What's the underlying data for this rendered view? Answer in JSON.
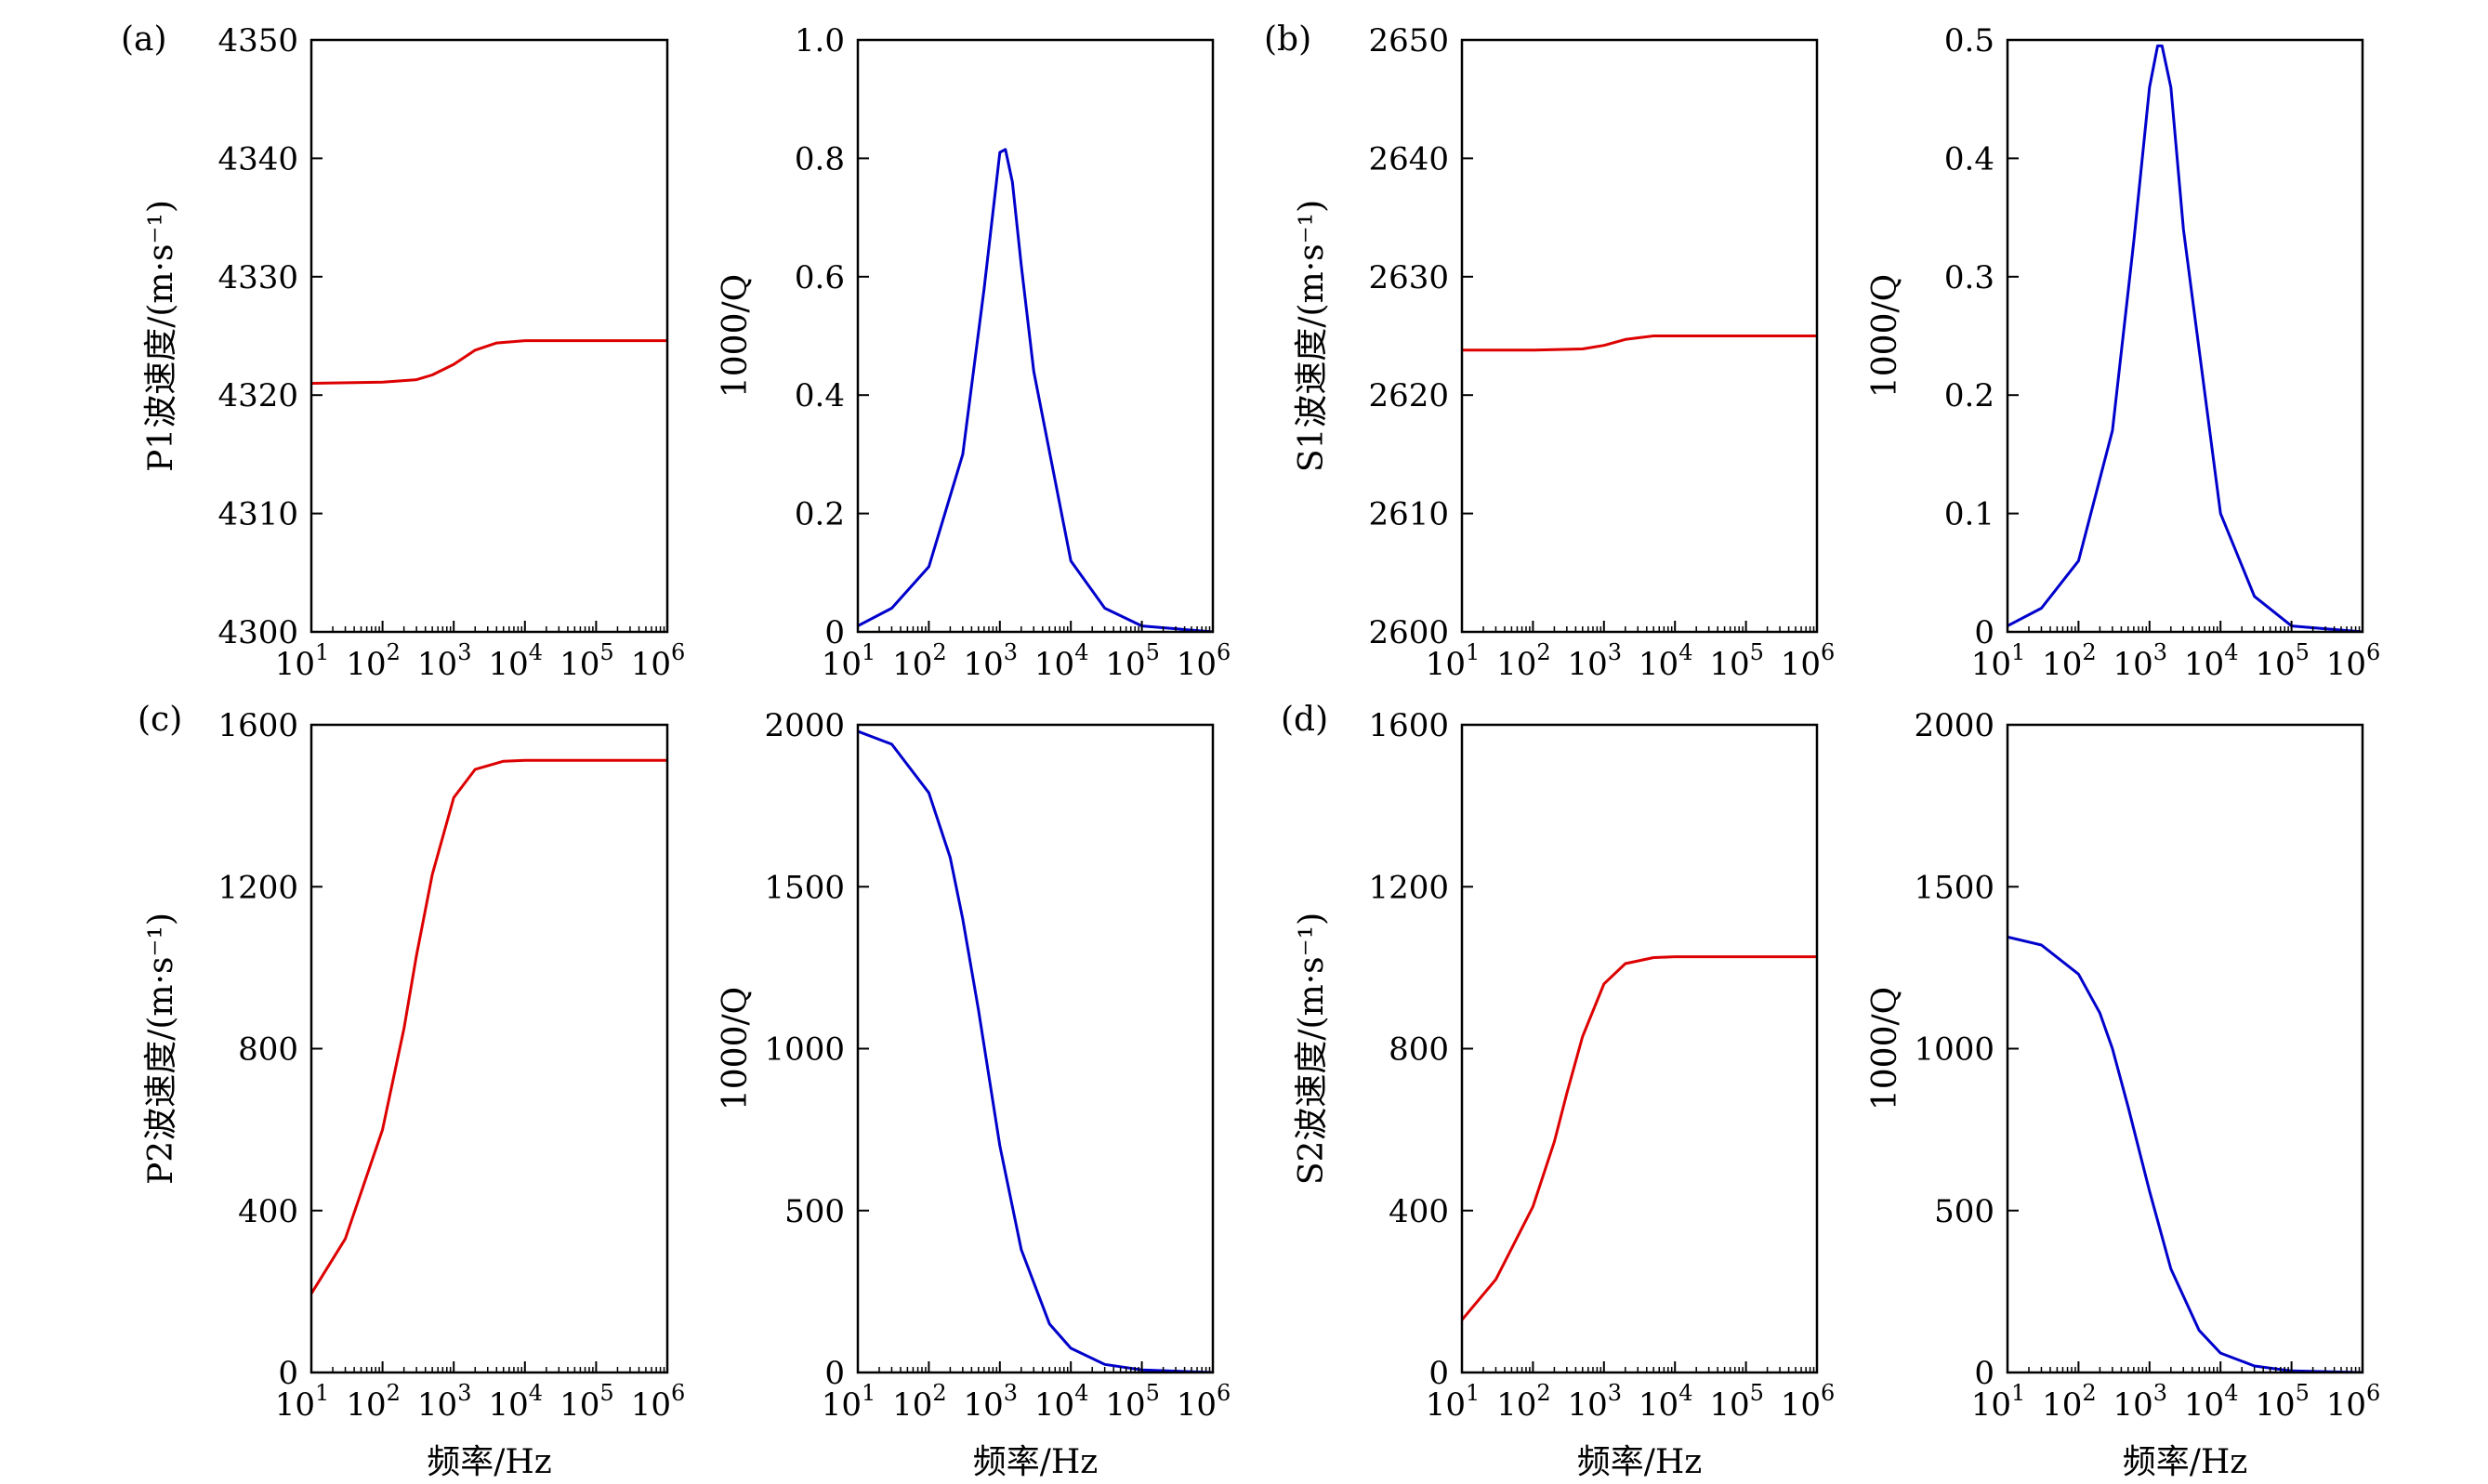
{
  "figure": {
    "panel_labels": [
      "(a)",
      "(b)",
      "(c)",
      "(d)"
    ],
    "xlabel": "频率/Hz"
  },
  "colors": {
    "velocity": "#dd0000",
    "attenuation": "#0000cc",
    "axis": "#000000"
  },
  "chart_data": [
    {
      "type": "line",
      "panel": "(a)",
      "xscale": "log",
      "xlim": [
        10,
        1000000
      ],
      "xticks": {
        "base": "10",
        "exponents": [
          "1",
          "2",
          "3",
          "4",
          "5",
          "6"
        ]
      },
      "xlabel": "",
      "ylabel": "P1波速度/(m·s⁻¹)",
      "ylim": [
        4300,
        4350
      ],
      "yticks": [
        "4300",
        "4310",
        "4320",
        "4330",
        "4340",
        "4350"
      ],
      "series": [
        {
          "name": "P1 velocity",
          "color": "#dd0000",
          "x": [
            10,
            100,
            300,
            500,
            1000,
            2000,
            4000,
            10000,
            100000,
            1000000
          ],
          "y": [
            4321.0,
            4321.1,
            4321.3,
            4321.7,
            4322.6,
            4323.8,
            4324.4,
            4324.6,
            4324.6,
            4324.6
          ]
        }
      ]
    },
    {
      "type": "line",
      "panel": "(a)",
      "xscale": "log",
      "xlim": [
        10,
        1000000
      ],
      "xticks": {
        "base": "10",
        "exponents": [
          "1",
          "2",
          "3",
          "4",
          "5",
          "6"
        ]
      },
      "xlabel": "",
      "ylabel": "1000/Q",
      "ylim": [
        0,
        1.0
      ],
      "yticks": [
        "0",
        "0.2",
        "0.4",
        "0.6",
        "0.8",
        "1.0"
      ],
      "series": [
        {
          "name": "P1 attenuation",
          "color": "#0000cc",
          "x": [
            10,
            30,
            100,
            300,
            600,
            1000,
            1200,
            1500,
            2000,
            3000,
            10000,
            30000,
            100000,
            1000000
          ],
          "y": [
            0.01,
            0.04,
            0.11,
            0.3,
            0.58,
            0.81,
            0.815,
            0.76,
            0.62,
            0.44,
            0.12,
            0.04,
            0.01,
            0.0
          ]
        }
      ]
    },
    {
      "type": "line",
      "panel": "(b)",
      "xscale": "log",
      "xlim": [
        10,
        1000000
      ],
      "xticks": {
        "base": "10",
        "exponents": [
          "1",
          "2",
          "3",
          "4",
          "5",
          "6"
        ]
      },
      "xlabel": "",
      "ylabel": "S1波速度/(m·s⁻¹)",
      "ylim": [
        2600,
        2650
      ],
      "yticks": [
        "2600",
        "2610",
        "2620",
        "2630",
        "2640",
        "2650"
      ],
      "series": [
        {
          "name": "S1 velocity",
          "color": "#dd0000",
          "x": [
            10,
            100,
            500,
            1000,
            2000,
            5000,
            10000,
            100000,
            1000000
          ],
          "y": [
            2623.8,
            2623.8,
            2623.9,
            2624.2,
            2624.7,
            2625.0,
            2625.0,
            2625.0,
            2625.0
          ]
        }
      ]
    },
    {
      "type": "line",
      "panel": "(b)",
      "xscale": "log",
      "xlim": [
        10,
        1000000
      ],
      "xticks": {
        "base": "10",
        "exponents": [
          "1",
          "2",
          "3",
          "4",
          "5",
          "6"
        ]
      },
      "xlabel": "",
      "ylabel": "1000/Q",
      "ylim": [
        0,
        0.5
      ],
      "yticks": [
        "0",
        "0.1",
        "0.2",
        "0.3",
        "0.4",
        "0.5"
      ],
      "series": [
        {
          "name": "S1 attenuation",
          "color": "#0000cc",
          "x": [
            10,
            30,
            100,
            300,
            600,
            1000,
            1300,
            1500,
            2000,
            3000,
            10000,
            30000,
            100000,
            1000000
          ],
          "y": [
            0.005,
            0.02,
            0.06,
            0.17,
            0.33,
            0.46,
            0.495,
            0.495,
            0.46,
            0.34,
            0.1,
            0.03,
            0.005,
            0.0
          ]
        }
      ]
    },
    {
      "type": "line",
      "panel": "(c)",
      "xscale": "log",
      "xlim": [
        10,
        1000000
      ],
      "xticks": {
        "base": "10",
        "exponents": [
          "1",
          "2",
          "3",
          "4",
          "5",
          "6"
        ]
      },
      "xlabel": "频率/Hz",
      "ylabel": "P2波速度/(m·s⁻¹)",
      "ylim": [
        0,
        1600
      ],
      "yticks": [
        "0",
        "400",
        "800",
        "1200",
        "1600"
      ],
      "series": [
        {
          "name": "P2 velocity",
          "color": "#dd0000",
          "x": [
            10,
            30,
            100,
            200,
            300,
            500,
            1000,
            2000,
            5000,
            10000,
            100000,
            1000000
          ],
          "y": [
            195,
            330,
            600,
            850,
            1030,
            1230,
            1420,
            1490,
            1510,
            1512,
            1512,
            1512
          ]
        }
      ]
    },
    {
      "type": "line",
      "panel": "(c)",
      "xscale": "log",
      "xlim": [
        10,
        1000000
      ],
      "xticks": {
        "base": "10",
        "exponents": [
          "1",
          "2",
          "3",
          "4",
          "5",
          "6"
        ]
      },
      "xlabel": "频率/Hz",
      "ylabel": "1000/Q",
      "ylim": [
        0,
        2000
      ],
      "yticks": [
        "0",
        "500",
        "1000",
        "1500",
        "2000"
      ],
      "series": [
        {
          "name": "P2 attenuation",
          "color": "#0000cc",
          "x": [
            10,
            30,
            100,
            200,
            300,
            500,
            1000,
            2000,
            5000,
            10000,
            30000,
            100000,
            1000000
          ],
          "y": [
            1980,
            1940,
            1790,
            1590,
            1400,
            1120,
            700,
            380,
            150,
            75,
            25,
            8,
            0
          ]
        }
      ]
    },
    {
      "type": "line",
      "panel": "(d)",
      "xscale": "log",
      "xlim": [
        10,
        1000000
      ],
      "xticks": {
        "base": "10",
        "exponents": [
          "1",
          "2",
          "3",
          "4",
          "5",
          "6"
        ]
      },
      "xlabel": "频率/Hz",
      "ylabel": "S2波速度/(m·s⁻¹)",
      "ylim": [
        0,
        1600
      ],
      "yticks": [
        "0",
        "400",
        "800",
        "1200",
        "1600"
      ],
      "series": [
        {
          "name": "S2 velocity",
          "color": "#dd0000",
          "x": [
            10,
            30,
            100,
            200,
            300,
            500,
            1000,
            2000,
            5000,
            10000,
            100000,
            1000000
          ],
          "y": [
            130,
            230,
            410,
            570,
            690,
            830,
            960,
            1010,
            1025,
            1027,
            1027,
            1027
          ]
        }
      ]
    },
    {
      "type": "line",
      "panel": "(d)",
      "xscale": "log",
      "xlim": [
        10,
        1000000
      ],
      "xticks": {
        "base": "10",
        "exponents": [
          "1",
          "2",
          "3",
          "4",
          "5",
          "6"
        ]
      },
      "xlabel": "频率/Hz",
      "ylabel": "1000/Q",
      "ylim": [
        0,
        2000
      ],
      "yticks": [
        "0",
        "500",
        "1000",
        "1500",
        "2000"
      ],
      "series": [
        {
          "name": "S2 attenuation",
          "color": "#0000cc",
          "x": [
            10,
            30,
            100,
            200,
            300,
            500,
            1000,
            2000,
            5000,
            10000,
            30000,
            100000,
            1000000
          ],
          "y": [
            1345,
            1320,
            1230,
            1110,
            1000,
            820,
            560,
            320,
            130,
            60,
            20,
            5,
            0
          ]
        }
      ]
    }
  ]
}
